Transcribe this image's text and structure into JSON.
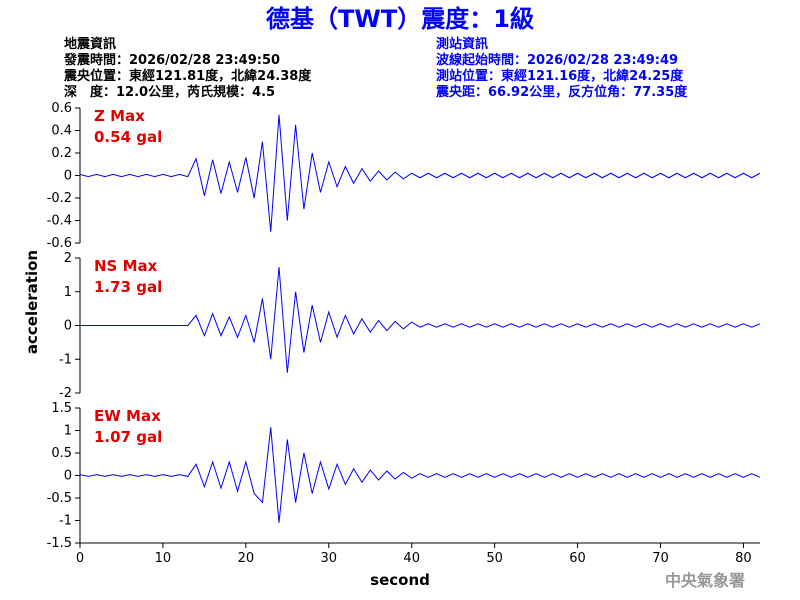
{
  "header": {
    "title": "德基（TWT）震度：1級",
    "left": [
      "地震資訊",
      "發震時間：2026/02/28 23:49:50",
      "震央位置：東經121.81度，北緯24.38度",
      "深　度：12.0公里，芮氏規模：4.5"
    ],
    "right": [
      "測站資訊",
      "波線起始時間：2026/02/28 23:49:49",
      "測站位置：東經121.16度，北緯24.25度",
      "震央距：66.92公里，反方位角：77.35度"
    ],
    "ylabel": "acceleration",
    "xlabel": "second",
    "footer": "中央氣象署"
  },
  "chart_data": [
    {
      "type": "line",
      "annotation": [
        "Z Max",
        "0.54 gal"
      ],
      "color": "#0000ff",
      "xlim": [
        0,
        82
      ],
      "ylim": [
        -0.6,
        0.6
      ],
      "yticks": [
        -0.6,
        -0.4,
        -0.2,
        0,
        0.2,
        0.4,
        0.6
      ],
      "x": [
        0,
        1,
        2,
        3,
        4,
        5,
        6,
        7,
        8,
        9,
        10,
        11,
        12,
        13,
        14,
        15,
        16,
        17,
        18,
        19,
        20,
        21,
        22,
        23,
        24,
        25,
        26,
        27,
        28,
        29,
        30,
        31,
        32,
        33,
        34,
        35,
        36,
        37,
        38,
        39,
        40,
        41,
        42,
        43,
        44,
        45,
        46,
        47,
        48,
        49,
        50,
        51,
        52,
        53,
        54,
        55,
        56,
        57,
        58,
        59,
        60,
        61,
        62,
        63,
        64,
        65,
        66,
        67,
        68,
        69,
        70,
        71,
        72,
        73,
        74,
        75,
        76,
        77,
        78,
        79,
        80,
        81,
        82
      ],
      "values": [
        0.01,
        -0.01,
        0.01,
        -0.01,
        0.01,
        -0.01,
        0.01,
        -0.01,
        0.01,
        -0.01,
        0.01,
        -0.01,
        0.01,
        -0.01,
        0.15,
        -0.18,
        0.14,
        -0.16,
        0.12,
        -0.15,
        0.16,
        -0.2,
        0.3,
        -0.5,
        0.54,
        -0.4,
        0.45,
        -0.3,
        0.2,
        -0.15,
        0.12,
        -0.1,
        0.08,
        -0.07,
        0.06,
        -0.05,
        0.04,
        -0.04,
        0.03,
        -0.03,
        0.02,
        -0.02,
        0.02,
        -0.02,
        0.02,
        -0.02,
        0.02,
        -0.02,
        0.02,
        -0.02,
        0.02,
        -0.02,
        0.02,
        -0.02,
        0.02,
        -0.02,
        0.02,
        -0.02,
        0.02,
        -0.02,
        0.02,
        -0.02,
        0.02,
        -0.02,
        0.02,
        -0.02,
        0.02,
        -0.02,
        0.02,
        -0.02,
        0.02,
        -0.02,
        0.02,
        -0.02,
        0.02,
        -0.02,
        0.02,
        -0.02,
        0.02,
        -0.02,
        0.02,
        -0.02,
        0.02
      ]
    },
    {
      "type": "line",
      "annotation": [
        "NS Max",
        "1.73 gal"
      ],
      "color": "#0000ff",
      "xlim": [
        0,
        82
      ],
      "ylim": [
        -2,
        2
      ],
      "yticks": [
        -2,
        -1,
        0,
        1,
        2
      ],
      "x": [
        0,
        1,
        2,
        3,
        4,
        5,
        6,
        7,
        8,
        9,
        10,
        11,
        12,
        13,
        14,
        15,
        16,
        17,
        18,
        19,
        20,
        21,
        22,
        23,
        24,
        25,
        26,
        27,
        28,
        29,
        30,
        31,
        32,
        33,
        34,
        35,
        36,
        37,
        38,
        39,
        40,
        41,
        42,
        43,
        44,
        45,
        46,
        47,
        48,
        49,
        50,
        51,
        52,
        53,
        54,
        55,
        56,
        57,
        58,
        59,
        60,
        61,
        62,
        63,
        64,
        65,
        66,
        67,
        68,
        69,
        70,
        71,
        72,
        73,
        74,
        75,
        76,
        77,
        78,
        79,
        80,
        81,
        82
      ],
      "values": [
        0,
        0,
        0,
        0,
        0,
        0,
        0,
        0,
        0,
        0,
        0,
        0,
        0,
        0,
        0.3,
        -0.3,
        0.35,
        -0.3,
        0.25,
        -0.35,
        0.3,
        -0.5,
        0.8,
        -1.0,
        1.73,
        -1.4,
        1.0,
        -0.8,
        0.6,
        -0.5,
        0.4,
        -0.35,
        0.3,
        -0.25,
        0.2,
        -0.2,
        0.15,
        -0.15,
        0.12,
        -0.1,
        0.1,
        -0.05,
        0.05,
        -0.05,
        0.05,
        -0.05,
        0.05,
        -0.05,
        0.05,
        -0.05,
        0.05,
        -0.05,
        0.05,
        -0.05,
        0.05,
        -0.05,
        0.05,
        -0.05,
        0.05,
        -0.05,
        0.05,
        -0.05,
        0.05,
        -0.05,
        0.05,
        -0.05,
        0.05,
        -0.05,
        0.05,
        -0.05,
        0.05,
        -0.05,
        0.05,
        -0.05,
        0.05,
        -0.05,
        0.05,
        -0.05,
        0.05,
        -0.05,
        0.05,
        -0.05,
        0.05
      ]
    },
    {
      "type": "line",
      "annotation": [
        "EW Max",
        "1.07 gal"
      ],
      "color": "#0000ff",
      "xlim": [
        0,
        82
      ],
      "ylim": [
        -1.5,
        1.5
      ],
      "yticks": [
        -1.5,
        -1,
        -0.5,
        0,
        0.5,
        1,
        1.5
      ],
      "xticks": [
        0,
        10,
        20,
        30,
        40,
        50,
        60,
        70,
        80
      ],
      "x": [
        0,
        1,
        2,
        3,
        4,
        5,
        6,
        7,
        8,
        9,
        10,
        11,
        12,
        13,
        14,
        15,
        16,
        17,
        18,
        19,
        20,
        21,
        22,
        23,
        24,
        25,
        26,
        27,
        28,
        29,
        30,
        31,
        32,
        33,
        34,
        35,
        36,
        37,
        38,
        39,
        40,
        41,
        42,
        43,
        44,
        45,
        46,
        47,
        48,
        49,
        50,
        51,
        52,
        53,
        54,
        55,
        56,
        57,
        58,
        59,
        60,
        61,
        62,
        63,
        64,
        65,
        66,
        67,
        68,
        69,
        70,
        71,
        72,
        73,
        74,
        75,
        76,
        77,
        78,
        79,
        80,
        81,
        82
      ],
      "values": [
        0.02,
        -0.02,
        0.02,
        -0.02,
        0.02,
        -0.02,
        0.02,
        -0.02,
        0.02,
        -0.02,
        0.02,
        -0.02,
        0.02,
        -0.02,
        0.25,
        -0.25,
        0.3,
        -0.28,
        0.3,
        -0.35,
        0.3,
        -0.4,
        -0.6,
        1.07,
        -1.05,
        0.8,
        -0.6,
        0.5,
        -0.4,
        0.3,
        -0.3,
        0.25,
        -0.2,
        0.15,
        -0.15,
        0.12,
        -0.1,
        0.1,
        -0.08,
        0.07,
        -0.06,
        0.04,
        -0.04,
        0.04,
        -0.04,
        0.04,
        -0.04,
        0.04,
        -0.04,
        0.04,
        -0.04,
        0.04,
        -0.04,
        0.04,
        -0.04,
        0.04,
        -0.04,
        0.04,
        -0.04,
        0.04,
        -0.04,
        0.04,
        -0.04,
        0.04,
        -0.04,
        0.04,
        -0.04,
        0.04,
        -0.04,
        0.04,
        -0.04,
        0.04,
        -0.04,
        0.04,
        -0.04,
        0.04,
        -0.04,
        0.04,
        -0.04,
        0.04,
        -0.04,
        0.04,
        -0.04
      ]
    }
  ]
}
